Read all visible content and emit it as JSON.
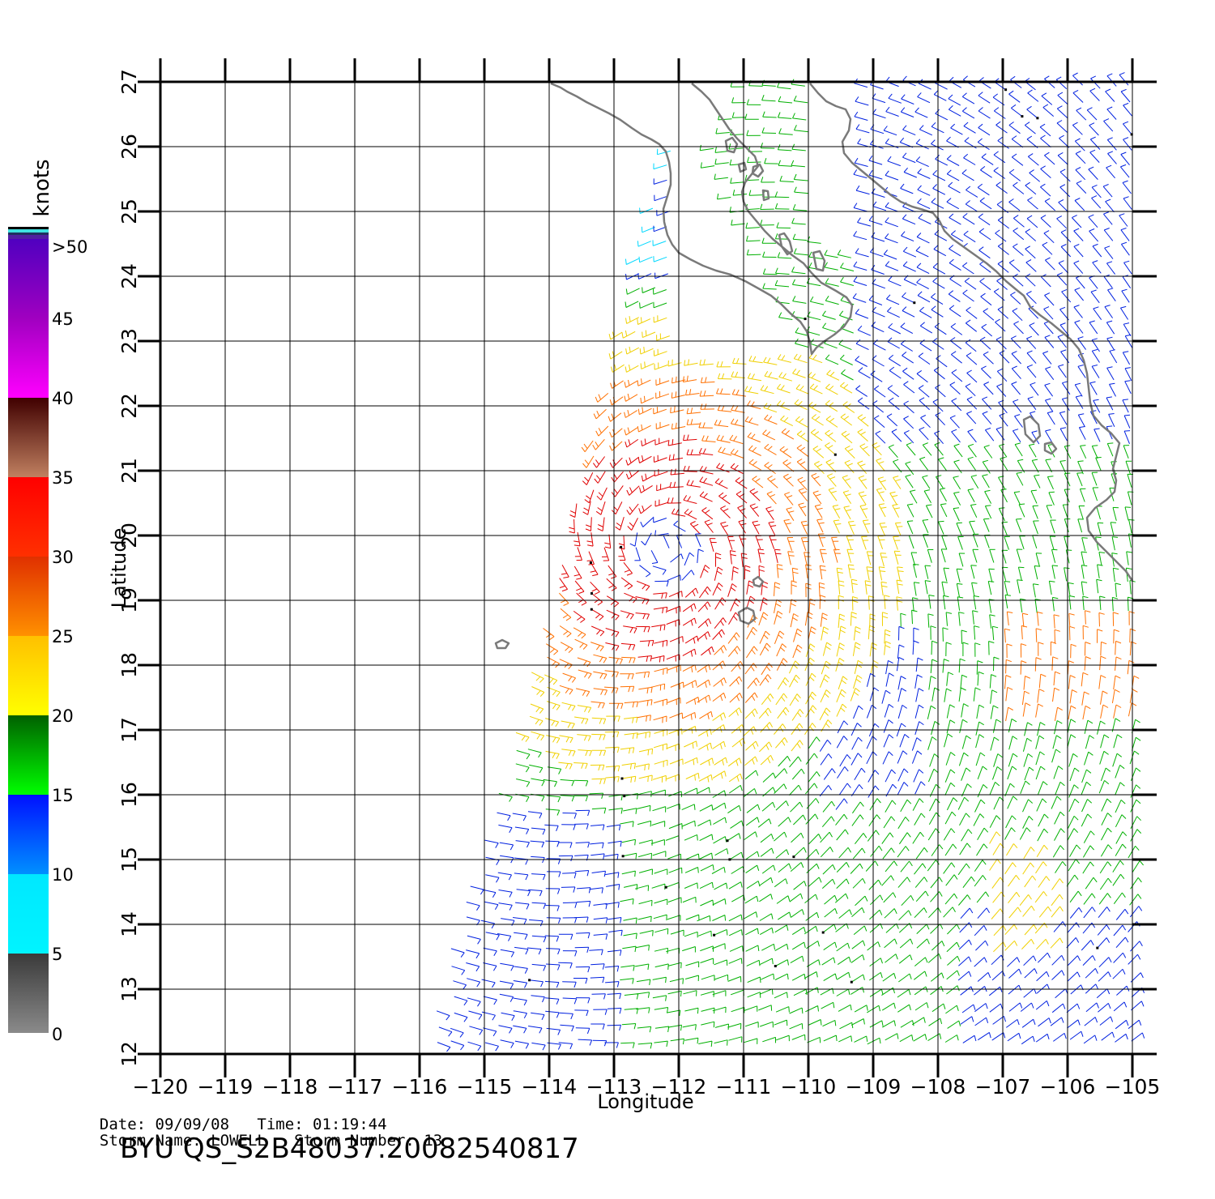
{
  "map": {
    "xlabel": "Longitude",
    "ylabel": "Latitude",
    "x_ticks": [
      -120,
      -119,
      -118,
      -117,
      -116,
      -115,
      -114,
      -113,
      -112,
      -111,
      -110,
      -109,
      -108,
      -107,
      -106,
      -105
    ],
    "x_tick_labels": [
      "−120",
      "−119",
      "−118",
      "−117",
      "−116",
      "−115",
      "−114",
      "−113",
      "−112",
      "−111",
      "−110",
      "−109",
      "−108",
      "−107",
      "−106",
      "−105"
    ],
    "y_ticks": [
      12,
      13,
      14,
      15,
      16,
      17,
      18,
      19,
      20,
      21,
      22,
      23,
      24,
      25,
      26,
      27
    ],
    "y_tick_labels": [
      "12",
      "13",
      "14",
      "15",
      "16",
      "17",
      "18",
      "19",
      "20",
      "21",
      "22",
      "23",
      "24",
      "25",
      "26",
      "27"
    ],
    "lon_range": [
      -120,
      -105
    ],
    "lat_range": [
      12,
      27
    ],
    "grid": true
  },
  "colorbar": {
    "unit_label": "knots",
    "labels": [
      ">50",
      "45",
      "40",
      "35",
      "30",
      "25",
      "20",
      "15",
      "10",
      "5",
      "0"
    ],
    "bands": [
      {
        "from": 0,
        "to": 5,
        "top": "#3a3a3a",
        "bottom": "#8a8a8a"
      },
      {
        "from": 5,
        "to": 10,
        "top": "#00e8ff",
        "bottom": "#00f4ff"
      },
      {
        "from": 10,
        "to": 15,
        "top": "#0010ff",
        "bottom": "#0090ff"
      },
      {
        "from": 15,
        "to": 20,
        "top": "#006000",
        "bottom": "#00ff00"
      },
      {
        "from": 20,
        "to": 25,
        "top": "#ffc000",
        "bottom": "#ffff00"
      },
      {
        "from": 25,
        "to": 30,
        "top": "#e03000",
        "bottom": "#ff9000"
      },
      {
        "from": 30,
        "to": 35,
        "top": "#ff0000",
        "bottom": "#ff3000"
      },
      {
        "from": 35,
        "to": 40,
        "top": "#400000",
        "bottom": "#c08060"
      },
      {
        "from": 40,
        "to": 45,
        "top": "#a000c0",
        "bottom": "#ff00ff"
      },
      {
        "from": 45,
        "to": 50,
        "top": "#5000c0",
        "bottom": "#a000c0"
      }
    ]
  },
  "wind_colors": {
    "5-10": "#00d8ff",
    "10-15": "#0020e0",
    "15-20": "#00b000",
    "20-25": "#f0d000",
    "25-30": "#ff7000",
    "30-35": "#e00000",
    "35-40": "#703020",
    "40-45": "#d000d0",
    "flag": "#000000"
  },
  "storm_center": {
    "lon": -112.2,
    "lat": 19.8
  },
  "footer": {
    "date_label": "Date:",
    "date_value": "09/09/08",
    "time_label": "Time:",
    "time_value": "01:19:44",
    "storm_name_label": "Storm Name:",
    "storm_name_value": "LOWELL",
    "storm_number_label": "Storm Number:",
    "storm_number_value": "13",
    "title": "BYU QS_S2B48037.20082540817"
  }
}
